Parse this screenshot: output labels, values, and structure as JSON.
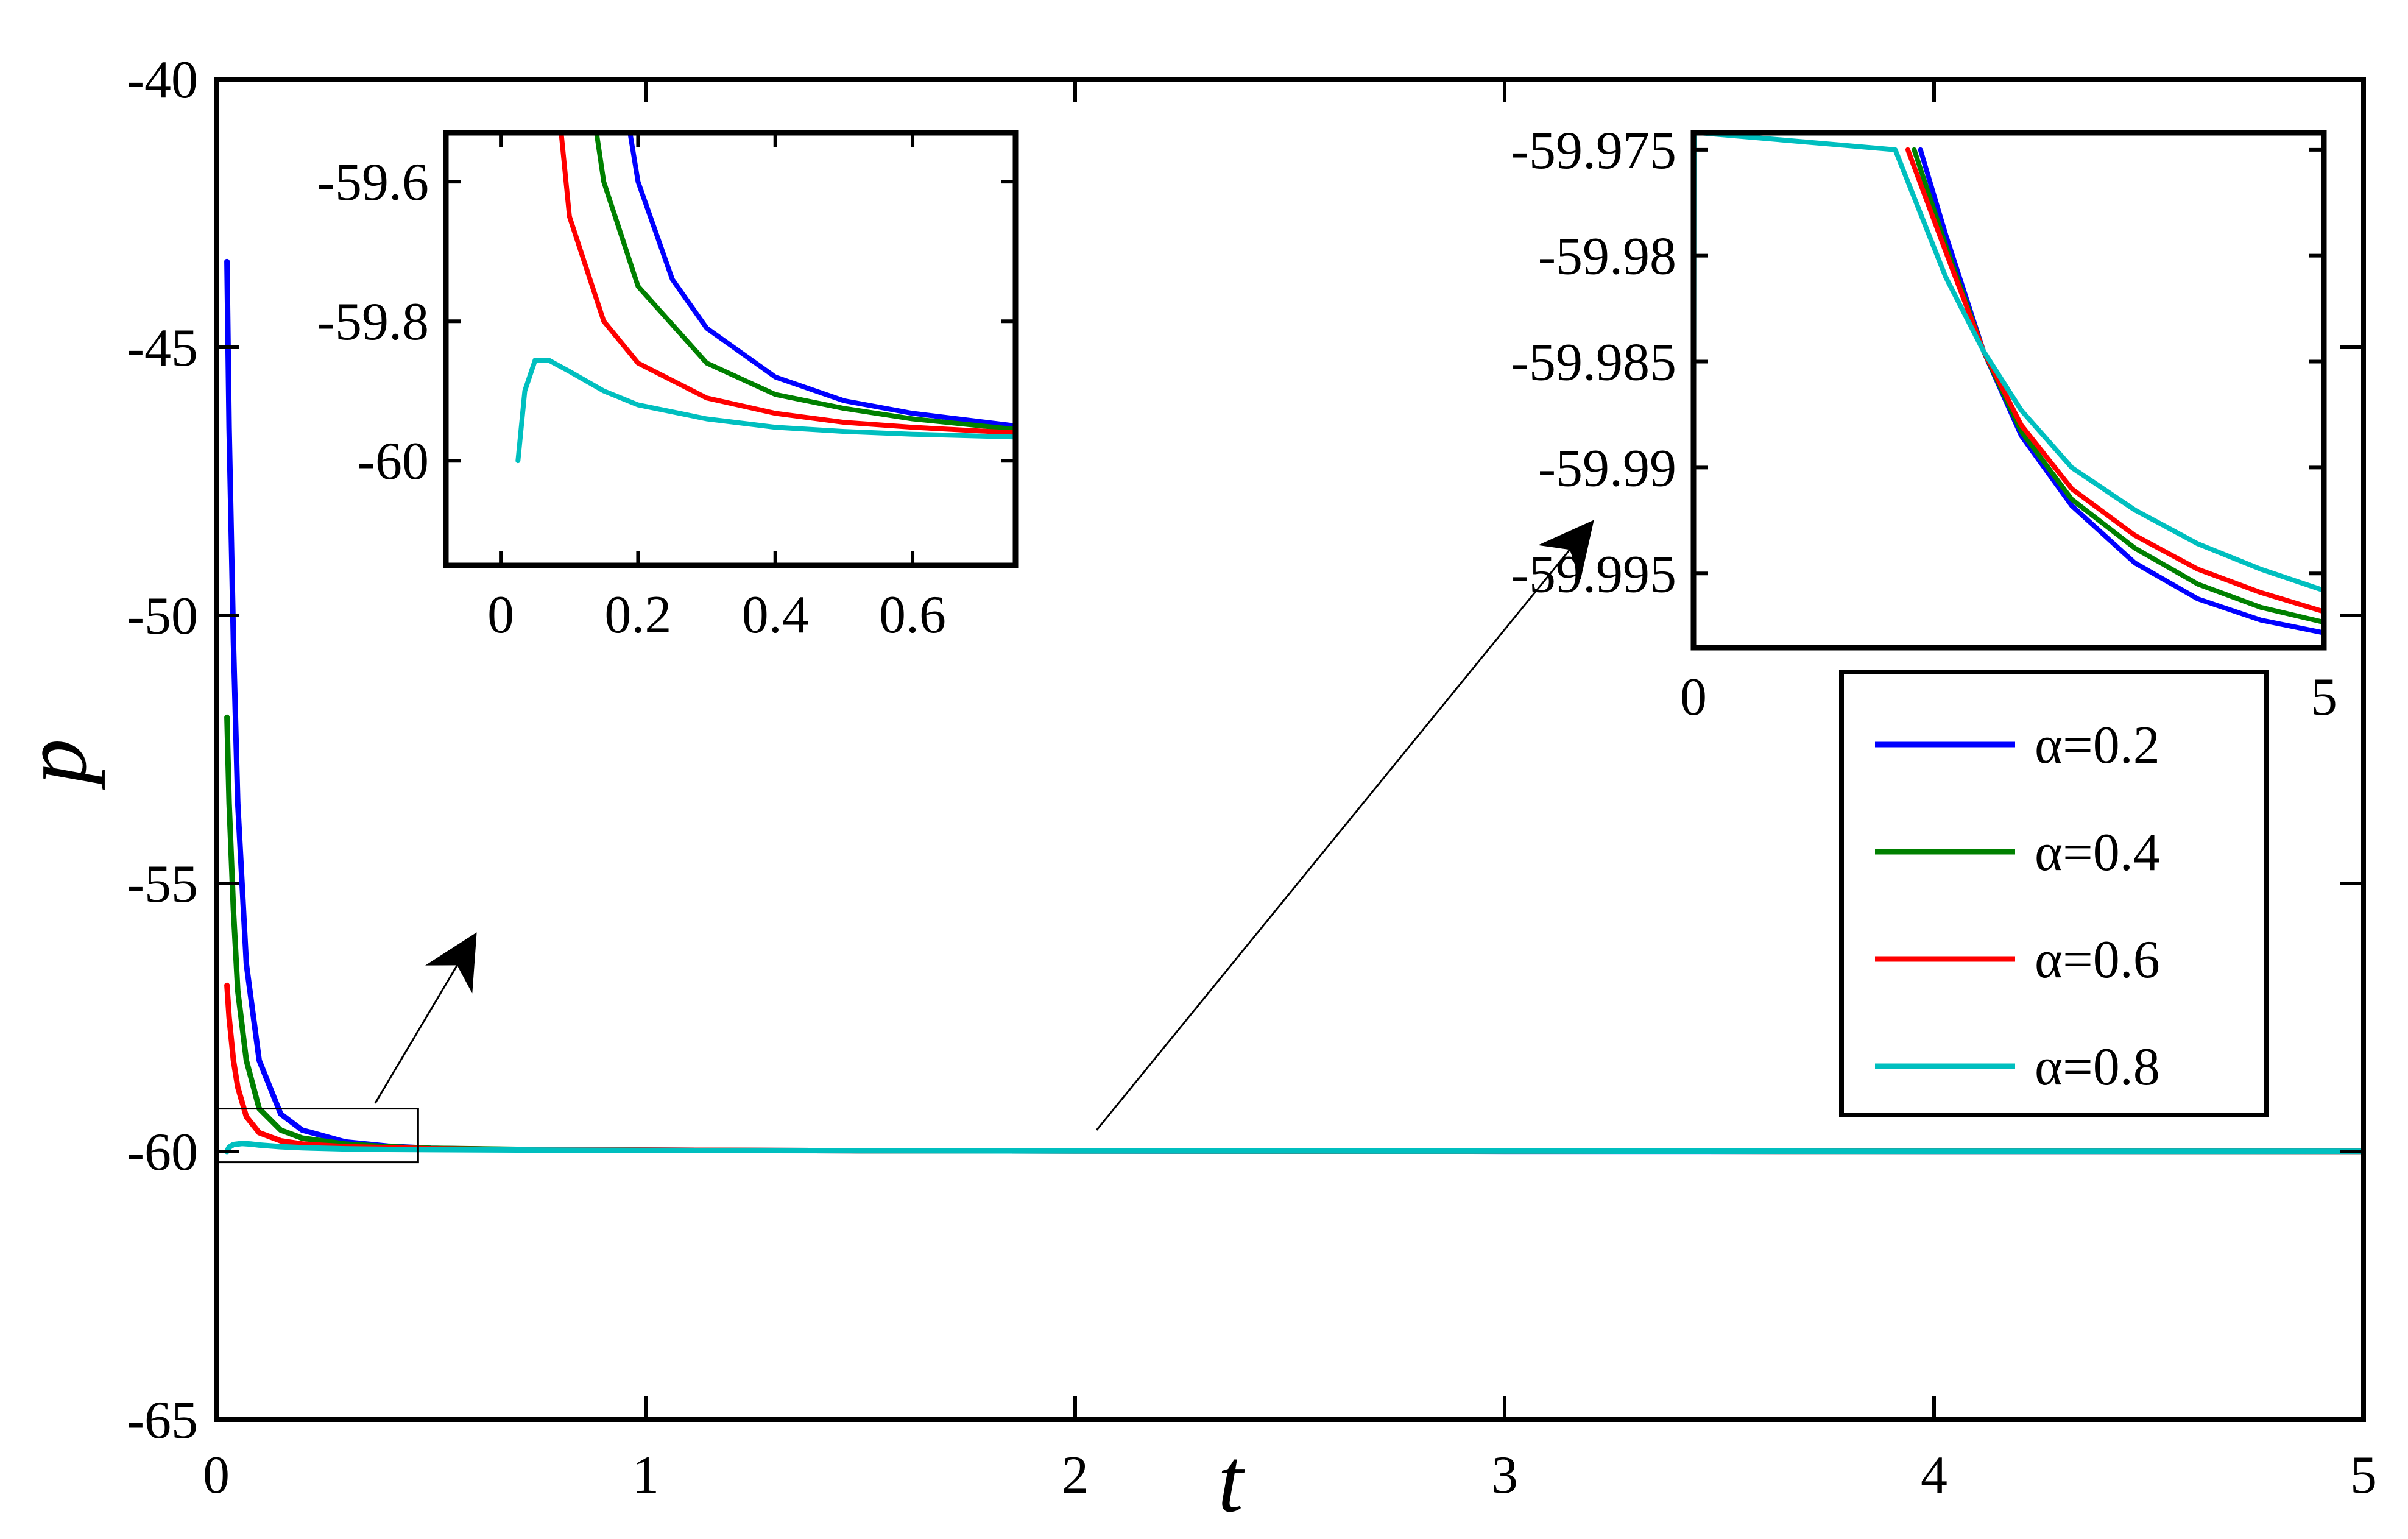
{
  "chart_data": [
    {
      "id": "main",
      "type": "line",
      "xlabel": "t",
      "ylabel": "p",
      "xlim": [
        0,
        5
      ],
      "ylim": [
        -65,
        -40
      ],
      "xticks": [
        0,
        1,
        2,
        3,
        4,
        5
      ],
      "yticks": [
        -65,
        -60,
        -55,
        -50,
        -45,
        -40
      ],
      "xtick_labels": [
        "0",
        "1",
        "2",
        "3",
        "4",
        "5"
      ],
      "ytick_labels": [
        "-65",
        "-60",
        "-55",
        "-50",
        "-45",
        "-40"
      ],
      "grid": false,
      "series": [
        {
          "name": "α=0.2",
          "color": "#0000ff",
          "x": [
            0.025,
            0.03,
            0.04,
            0.05,
            0.07,
            0.1,
            0.15,
            0.2,
            0.3,
            0.4,
            0.5,
            0.7,
            1,
            1.5,
            2,
            3,
            4,
            5
          ],
          "y": [
            -43.4,
            -46.5,
            -50.5,
            -53.5,
            -56.5,
            -58.3,
            -59.3,
            -59.6,
            -59.82,
            -59.9,
            -59.94,
            -59.965,
            -59.975,
            -59.985,
            -59.99,
            -59.995,
            -59.997,
            -59.998
          ]
        },
        {
          "name": "α=0.4",
          "color": "#008000",
          "x": [
            0.025,
            0.03,
            0.04,
            0.05,
            0.07,
            0.1,
            0.15,
            0.2,
            0.3,
            0.4,
            0.5,
            0.7,
            1,
            1.5,
            2,
            3,
            4,
            5
          ],
          "y": [
            -51.9,
            -53.5,
            -55.5,
            -57.0,
            -58.3,
            -59.2,
            -59.6,
            -59.75,
            -59.86,
            -59.91,
            -59.94,
            -59.96,
            -59.975,
            -59.985,
            -59.99,
            -59.994,
            -59.996,
            -59.998
          ]
        },
        {
          "name": "α=0.6",
          "color": "#ff0000",
          "x": [
            0.025,
            0.03,
            0.04,
            0.05,
            0.07,
            0.1,
            0.15,
            0.2,
            0.3,
            0.4,
            0.5,
            0.7,
            1,
            1.5,
            2,
            3,
            4,
            5
          ],
          "y": [
            -56.9,
            -57.5,
            -58.3,
            -58.8,
            -59.35,
            -59.65,
            -59.8,
            -59.86,
            -59.91,
            -59.93,
            -59.95,
            -59.965,
            -59.975,
            -59.985,
            -59.99,
            -59.994,
            -59.996,
            -59.997
          ]
        },
        {
          "name": "α=0.8",
          "color": "#00bfbf",
          "x": [
            0.025,
            0.03,
            0.04,
            0.06,
            0.08,
            0.1,
            0.15,
            0.2,
            0.3,
            0.4,
            0.5,
            0.7,
            1,
            1.5,
            2,
            3,
            4,
            5
          ],
          "y": [
            -60.0,
            -59.92,
            -59.87,
            -59.85,
            -59.86,
            -59.88,
            -59.91,
            -59.93,
            -59.95,
            -59.96,
            -59.965,
            -59.972,
            -59.98,
            -59.985,
            -59.99,
            -59.993,
            -59.995,
            -59.996
          ]
        }
      ],
      "zoom_box": {
        "xlim": [
          0,
          0.47
        ],
        "ylim": [
          -60.2,
          -59.2
        ]
      },
      "annotations": [
        {
          "type": "arrow",
          "label": "zoom-to-inset-1",
          "from": [
            0.37,
            -59.1
          ],
          "to": [
            0.6,
            -56.0
          ]
        },
        {
          "type": "arrow",
          "label": "zoom-to-inset-2",
          "from": [
            2.05,
            -59.6
          ],
          "to": [
            3.2,
            -48.3
          ]
        }
      ]
    },
    {
      "id": "inset1",
      "type": "line",
      "xlim": [
        -0.08,
        0.75
      ],
      "ylim": [
        -60.15,
        -59.53
      ],
      "xticks": [
        0,
        0.2,
        0.4,
        0.6
      ],
      "yticks": [
        -60,
        -59.8,
        -59.6
      ],
      "xtick_labels": [
        "0",
        "0.2",
        "0.4",
        "0.6"
      ],
      "ytick_labels": [
        "-60",
        "-59.8",
        "-59.6"
      ],
      "series": [
        {
          "name": "α=0.2",
          "color": "#0000ff",
          "x": [
            0.15,
            0.2,
            0.25,
            0.3,
            0.4,
            0.5,
            0.6,
            0.75
          ],
          "y": [
            -59.3,
            -59.6,
            -59.74,
            -59.81,
            -59.88,
            -59.914,
            -59.932,
            -59.95
          ]
        },
        {
          "name": "α=0.4",
          "color": "#008000",
          "x": [
            0.12,
            0.15,
            0.2,
            0.3,
            0.4,
            0.5,
            0.6,
            0.75
          ],
          "y": [
            -59.4,
            -59.6,
            -59.75,
            -59.86,
            -59.905,
            -59.925,
            -59.94,
            -59.955
          ]
        },
        {
          "name": "α=0.6",
          "color": "#ff0000",
          "x": [
            0.08,
            0.1,
            0.15,
            0.2,
            0.3,
            0.4,
            0.5,
            0.6,
            0.75
          ],
          "y": [
            -59.45,
            -59.65,
            -59.8,
            -59.86,
            -59.91,
            -59.932,
            -59.945,
            -59.952,
            -59.96
          ]
        },
        {
          "name": "α=0.8",
          "color": "#00bfbf",
          "x": [
            0.025,
            0.035,
            0.05,
            0.07,
            0.1,
            0.15,
            0.2,
            0.3,
            0.4,
            0.5,
            0.6,
            0.75
          ],
          "y": [
            -60.0,
            -59.9,
            -59.856,
            -59.856,
            -59.872,
            -59.9,
            -59.92,
            -59.94,
            -59.952,
            -59.958,
            -59.962,
            -59.966
          ]
        }
      ]
    },
    {
      "id": "inset2",
      "type": "line",
      "xlim": [
        0,
        5
      ],
      "ylim": [
        -59.9985,
        -59.9742
      ],
      "xticks": [
        0,
        5
      ],
      "yticks": [
        -59.995,
        -59.99,
        -59.985,
        -59.98,
        -59.975
      ],
      "xtick_labels": [
        "0",
        "5"
      ],
      "ytick_labels": [
        "-59.995",
        "-59.99",
        "-59.985",
        "-59.98",
        "-59.975"
      ],
      "series": [
        {
          "name": "α=0.2",
          "color": "#0000ff",
          "x": [
            1.8,
            2.0,
            2.3,
            2.6,
            3.0,
            3.5,
            4.0,
            4.5,
            5.0
          ],
          "y": [
            -59.975,
            -59.979,
            -59.9845,
            -59.9885,
            -59.9918,
            -59.9945,
            -59.9962,
            -59.9972,
            -59.9978
          ]
        },
        {
          "name": "α=0.4",
          "color": "#008000",
          "x": [
            1.75,
            2.0,
            2.3,
            2.6,
            3.0,
            3.5,
            4.0,
            4.5,
            5.0
          ],
          "y": [
            -59.975,
            -59.9795,
            -59.9845,
            -59.9883,
            -59.9915,
            -59.9938,
            -59.9955,
            -59.9966,
            -59.9973
          ]
        },
        {
          "name": "α=0.6",
          "color": "#ff0000",
          "x": [
            1.7,
            2.0,
            2.3,
            2.6,
            3.0,
            3.5,
            4.0,
            4.5,
            5.0
          ],
          "y": [
            -59.975,
            -59.9798,
            -59.9845,
            -59.988,
            -59.991,
            -59.9932,
            -59.9948,
            -59.9959,
            -59.9968
          ]
        },
        {
          "name": "α=0.8",
          "color": "#00bfbf",
          "x": [
            0.0,
            0.005,
            0.05,
            1.6,
            1.8,
            2.0,
            2.3,
            2.6,
            3.0,
            3.5,
            4.0,
            4.5,
            5.0
          ],
          "y": [
            -59.9985,
            -59.9742,
            -59.9742,
            -59.975,
            -59.978,
            -59.981,
            -59.9845,
            -59.9873,
            -59.99,
            -59.992,
            -59.9936,
            -59.9948,
            -59.9958
          ]
        }
      ]
    }
  ],
  "legend": {
    "placement": "right",
    "entries": [
      {
        "label": "α=0.2",
        "color": "#0000ff"
      },
      {
        "label": "α=0.4",
        "color": "#008000"
      },
      {
        "label": "α=0.6",
        "color": "#ff0000"
      },
      {
        "label": "α=0.8",
        "color": "#00bfbf"
      }
    ]
  }
}
